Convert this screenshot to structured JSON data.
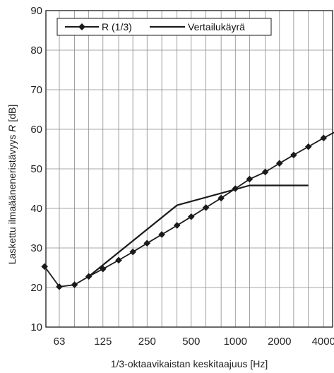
{
  "chart_data": {
    "type": "line",
    "title": "",
    "xlabel": "1/3-oktaavikaistan keskitaajuus [Hz]",
    "ylabel_prefix": "Laskettu ilmaääneneristävyys ",
    "ylabel_var": "R",
    "ylabel_suffix": " [dB]",
    "x_scale": "log",
    "x_tick_labels": [
      "63",
      "125",
      "250",
      "500",
      "1000",
      "2000",
      "4000"
    ],
    "x_tick_values": [
      63,
      125,
      250,
      500,
      1000,
      2000,
      4000
    ],
    "ylim": [
      10,
      90
    ],
    "y_ticks": [
      10,
      20,
      30,
      40,
      50,
      60,
      70,
      80,
      90
    ],
    "grid": true,
    "legend_position": "top-left",
    "series": [
      {
        "name": "R (1/3)",
        "marker": "diamond",
        "x": [
          50,
          63,
          80,
          100,
          125,
          160,
          200,
          250,
          315,
          400,
          500,
          630,
          800,
          1000,
          1250,
          1600,
          2000,
          2500,
          3150,
          4000,
          5000
        ],
        "values": [
          25.3,
          20.2,
          20.7,
          22.8,
          24.7,
          26.9,
          29.0,
          31.2,
          33.4,
          35.7,
          37.9,
          40.2,
          42.6,
          45.0,
          47.4,
          49.2,
          51.4,
          53.5,
          55.6,
          57.8,
          59.7
        ]
      },
      {
        "name": "Vertailukäyrä",
        "marker": "none",
        "x": [
          100,
          400,
          1250,
          3150
        ],
        "values": [
          22.8,
          40.8,
          45.8,
          45.8
        ]
      }
    ]
  },
  "colors": {
    "line": "#1a1a1a",
    "grid": "#8a8a8a",
    "background": "#ffffff"
  }
}
